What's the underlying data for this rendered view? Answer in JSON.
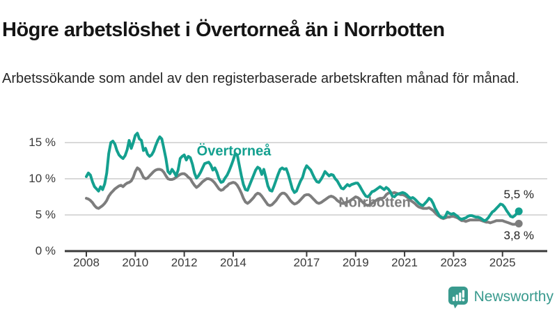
{
  "header": {
    "title": "Högre arbetslöshet i Övertorneå än i Norrbotten",
    "subtitle": "Arbetssökande som andel av den registerbaserade arbetskraften månad för månad."
  },
  "chart_data": {
    "type": "line",
    "title": "Högre arbetslöshet i Övertorneå än i Norrbotten",
    "subtitle": "Arbetssökande som andel av den registerbaserade arbetskraften månad för månad.",
    "unit": "percent of registered labour force",
    "x_start_month": "2008-01",
    "x_end_month": "2025-09",
    "points_per_year": 12,
    "grid": "horizontal",
    "legend_position": "inline-labels",
    "ylim": [
      0,
      17
    ],
    "y_tick_labels": [
      "15 %",
      "10 %",
      "5 %",
      "0 %"
    ],
    "y_tick_values": [
      15,
      10,
      5,
      0
    ],
    "x_tick_labels": [
      "2008",
      "2010",
      "2012",
      "2014",
      "2017",
      "2019",
      "2021",
      "2023",
      "2025"
    ],
    "x_tick_years": [
      2008,
      2010,
      2012,
      2014,
      2017,
      2019,
      2021,
      2023,
      2025
    ],
    "series": [
      {
        "name": "Övertorneå",
        "color": "#14a08f",
        "end_label": "5,5 %",
        "last_value": 5.5,
        "values": [
          10.3,
          10.8,
          10.5,
          9.6,
          8.9,
          8.6,
          8.3,
          8.9,
          8.5,
          9.3,
          10.8,
          13.5,
          15.0,
          15.2,
          14.8,
          13.9,
          13.3,
          13.0,
          12.8,
          13.2,
          14.0,
          15.3,
          14.2,
          15.0,
          16.0,
          16.3,
          15.5,
          15.3,
          13.9,
          14.2,
          13.4,
          13.1,
          13.3,
          13.8,
          14.6,
          15.3,
          15.8,
          15.5,
          14.2,
          12.8,
          11.0,
          10.7,
          11.3,
          10.9,
          10.4,
          11.2,
          12.8,
          13.1,
          13.3,
          12.6,
          13.1,
          12.9,
          12.0,
          10.8,
          10.1,
          10.4,
          10.9,
          11.5,
          12.1,
          12.2,
          12.3,
          11.9,
          11.2,
          11.5,
          10.9,
          10.0,
          9.5,
          9.6,
          10.1,
          10.5,
          11.1,
          11.8,
          12.6,
          13.5,
          13.3,
          11.8,
          10.4,
          9.2,
          8.5,
          8.4,
          9.1,
          9.8,
          10.5,
          11.2,
          11.6,
          11.4,
          10.6,
          11.3,
          10.2,
          9.0,
          8.4,
          8.3,
          9.0,
          9.8,
          10.6,
          11.3,
          11.5,
          11.3,
          11.4,
          10.6,
          9.6,
          8.6,
          8.1,
          8.3,
          9.0,
          9.7,
          10.2,
          11.2,
          11.8,
          11.5,
          11.2,
          10.6,
          10.0,
          9.6,
          9.5,
          9.9,
          10.4,
          11.0,
          10.7,
          10.4,
          10.6,
          10.5,
          10.0,
          9.7,
          9.2,
          8.7,
          8.6,
          8.9,
          9.2,
          9.0,
          9.2,
          9.3,
          9.4,
          9.4,
          9.0,
          8.5,
          8.0,
          7.6,
          7.5,
          7.8,
          8.2,
          8.3,
          8.5,
          8.7,
          8.9,
          8.7,
          8.5,
          8.8,
          8.6,
          8.2,
          7.6,
          7.5,
          7.8,
          7.9,
          8.0,
          8.1,
          8.0,
          7.8,
          7.5,
          7.3,
          7.4,
          7.2,
          6.9,
          6.6,
          6.4,
          6.3,
          6.6,
          6.9,
          7.3,
          7.1,
          6.6,
          5.9,
          5.4,
          4.9,
          4.7,
          4.6,
          4.8,
          5.4,
          5.2,
          5.1,
          5.2,
          5.0,
          4.8,
          4.5,
          4.4,
          4.5,
          4.6,
          4.8,
          4.9,
          4.9,
          4.8,
          4.7,
          4.7,
          4.6,
          4.4,
          4.2,
          4.3,
          4.6,
          5.0,
          5.4,
          5.6,
          5.9,
          6.2,
          6.5,
          6.4,
          6.1,
          5.6,
          5.2,
          4.8,
          4.7,
          4.9,
          5.2,
          5.5
        ]
      },
      {
        "name": "Norrbotten",
        "color": "#7d7d7d",
        "end_label": "3,8 %",
        "last_value": 3.8,
        "values": [
          7.3,
          7.2,
          7.0,
          6.7,
          6.3,
          6.0,
          5.9,
          6.1,
          6.3,
          6.6,
          7.0,
          7.6,
          8.0,
          8.3,
          8.6,
          8.8,
          9.0,
          9.1,
          8.9,
          9.2,
          9.4,
          9.5,
          9.7,
          10.2,
          11.0,
          11.5,
          11.3,
          10.8,
          10.2,
          10.0,
          10.1,
          10.4,
          10.7,
          11.0,
          11.2,
          11.3,
          11.3,
          11.2,
          10.9,
          10.4,
          10.0,
          9.9,
          9.9,
          10.0,
          10.2,
          10.4,
          10.6,
          10.7,
          10.7,
          10.5,
          10.2,
          10.0,
          9.5,
          9.1,
          8.8,
          9.0,
          9.3,
          9.6,
          9.8,
          10.0,
          10.0,
          9.9,
          9.7,
          9.4,
          9.0,
          8.6,
          8.4,
          8.5,
          8.8,
          9.0,
          9.3,
          9.4,
          9.5,
          9.4,
          9.1,
          8.6,
          8.0,
          7.3,
          6.8,
          6.6,
          6.8,
          7.1,
          7.4,
          7.8,
          8.0,
          7.9,
          7.6,
          7.2,
          6.8,
          6.4,
          6.3,
          6.4,
          6.7,
          7.0,
          7.4,
          7.8,
          8.0,
          8.0,
          7.8,
          7.4,
          7.0,
          6.7,
          6.5,
          6.6,
          6.8,
          7.1,
          7.4,
          7.7,
          7.8,
          7.8,
          7.6,
          7.3,
          7.0,
          6.7,
          6.6,
          6.7,
          6.9,
          7.1,
          7.3,
          7.5,
          7.6,
          7.5,
          7.3,
          7.0,
          6.8,
          6.6,
          6.6,
          6.7,
          6.8,
          6.9,
          7.1,
          7.3,
          7.5,
          7.4,
          7.2,
          6.9,
          6.6,
          6.4,
          6.3,
          6.4,
          6.6,
          6.8,
          7.0,
          7.2,
          7.3,
          7.3,
          7.4,
          7.8,
          8.0,
          8.1,
          8.0,
          8.1,
          8.0,
          7.9,
          7.8,
          7.8,
          7.7,
          7.5,
          7.3,
          7.0,
          6.8,
          6.6,
          6.3,
          6.1,
          6.0,
          5.9,
          5.9,
          5.9,
          6.0,
          5.8,
          5.6,
          5.3,
          5.0,
          4.8,
          4.6,
          4.5,
          4.6,
          4.7,
          4.7,
          4.8,
          4.8,
          4.7,
          4.6,
          4.4,
          4.2,
          4.2,
          4.1,
          4.2,
          4.3,
          4.3,
          4.3,
          4.3,
          4.3,
          4.3,
          4.2,
          4.1,
          4.0,
          4.0,
          3.9,
          4.0,
          4.1,
          4.2,
          4.2,
          4.2,
          4.2,
          4.1,
          4.0,
          3.9,
          3.8,
          3.7,
          3.7,
          3.8,
          3.8
        ]
      }
    ]
  },
  "annotations": {
    "series_label_top": "Övertorneå",
    "series_label_bottom": "Norrbotten",
    "end_value_top": "5,5 %",
    "end_value_bottom": "3,8 %"
  },
  "footer": {
    "brand": "Newsworthy",
    "logo_icon": "bar-chart-speech-bubble-icon",
    "brand_color": "#399a8e"
  },
  "colors": {
    "overtornea_line": "#14a08f",
    "norrbotten_line": "#7d7d7d",
    "gridline": "#d9d9d9",
    "axis": "#3a3a3a",
    "tick_text": "#3a3a3a",
    "title_text": "#151515"
  }
}
